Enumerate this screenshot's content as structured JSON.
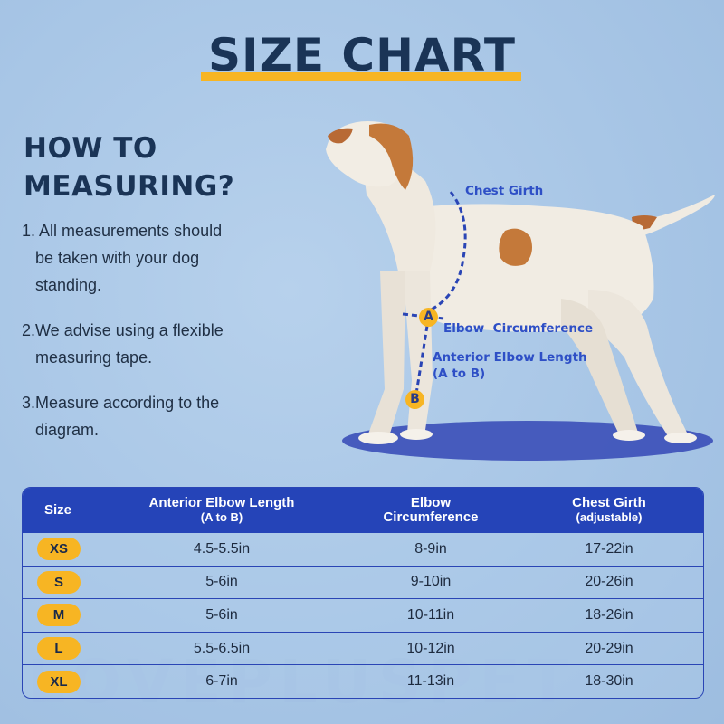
{
  "title": "SIZE CHART",
  "how_to": {
    "heading_line1": "HOW TO",
    "heading_line2": "MEASURING?",
    "steps": [
      {
        "num": "1. All measurements should",
        "rest": "be taken with your dog standing."
      },
      {
        "num": "2.We advise using a flexible",
        "rest": "measuring tape."
      },
      {
        "num": "3.Measure according to the",
        "rest": "diagram."
      }
    ]
  },
  "diagram": {
    "chest_label": "Chest Girth",
    "elbow_label": "Elbow  Circumference",
    "anterior_label_line1": "Anterior Elbow Length",
    "anterior_label_line2": "(A to B)",
    "marker_a": "A",
    "marker_b": "B"
  },
  "table": {
    "headers": {
      "size": "Size",
      "anterior": "Anterior Elbow Length",
      "anterior_sub": "(A to B)",
      "elbow": "Elbow",
      "elbow_sub": "Circumference",
      "chest": "Chest Girth",
      "chest_sub": "(adjustable)"
    },
    "rows": [
      {
        "size": "XS",
        "anterior": "4.5-5.5in",
        "elbow": "8-9in",
        "chest": "17-22in"
      },
      {
        "size": "S",
        "anterior": "5-6in",
        "elbow": "9-10in",
        "chest": "20-26in"
      },
      {
        "size": "M",
        "anterior": "5-6in",
        "elbow": "10-11in",
        "chest": "18-26in"
      },
      {
        "size": "L",
        "anterior": "5.5-6.5in",
        "elbow": "10-12in",
        "chest": "20-29in"
      },
      {
        "size": "XL",
        "anterior": "6-7in",
        "elbow": "11-13in",
        "chest": "18-30in"
      }
    ]
  },
  "watermark": "LOVEPLUSPET",
  "colors": {
    "background": "#a8c6e6",
    "title": "#1a3456",
    "accent_yellow": "#f7b523",
    "table_header": "#2544b8",
    "diagram_label": "#2e4fc6"
  }
}
